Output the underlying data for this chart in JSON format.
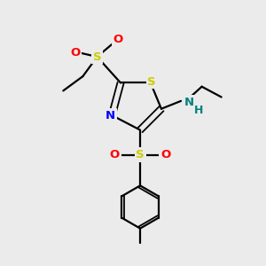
{
  "bg_color": "#ebebeb",
  "colors": {
    "S": "#cccc00",
    "N": "#0000ff",
    "O": "#ff0000",
    "NH": "#008080",
    "bond": "#000000"
  },
  "figsize": [
    3.0,
    3.0
  ],
  "dpi": 100
}
